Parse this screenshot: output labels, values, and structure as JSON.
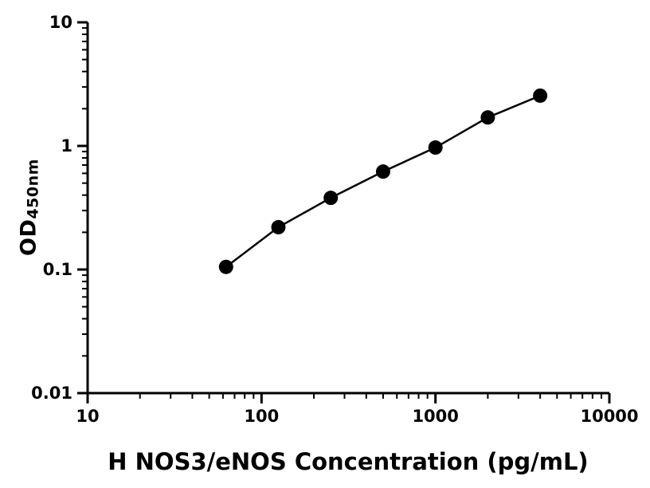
{
  "figure": {
    "background": "#ffffff"
  },
  "chart_data": {
    "type": "scatter",
    "title": "",
    "xlabel": "H NOS3/eNOS Concentration (pg/mL)",
    "ylabel": "OD450nm",
    "ylabel_main": "OD",
    "ylabel_sub": "450nm",
    "xscale": "log",
    "yscale": "log",
    "xlim": [
      10,
      10000
    ],
    "ylim": [
      0.01,
      10
    ],
    "x_ticks": [
      10,
      100,
      1000,
      10000
    ],
    "x_tick_labels": [
      "10",
      "100",
      "1000",
      "10000"
    ],
    "y_ticks": [
      0.01,
      0.1,
      1,
      10
    ],
    "y_tick_labels": [
      "0.01",
      "0.1",
      "1",
      "10"
    ],
    "x": [
      62.5,
      125,
      250,
      500,
      1000,
      2000,
      4000
    ],
    "y": [
      0.105,
      0.22,
      0.38,
      0.62,
      0.97,
      1.7,
      2.55
    ],
    "marker_color": "#000000",
    "marker_radius": 9,
    "line_color": "#000000",
    "connect_points": true,
    "grid": false,
    "legend": "none"
  }
}
